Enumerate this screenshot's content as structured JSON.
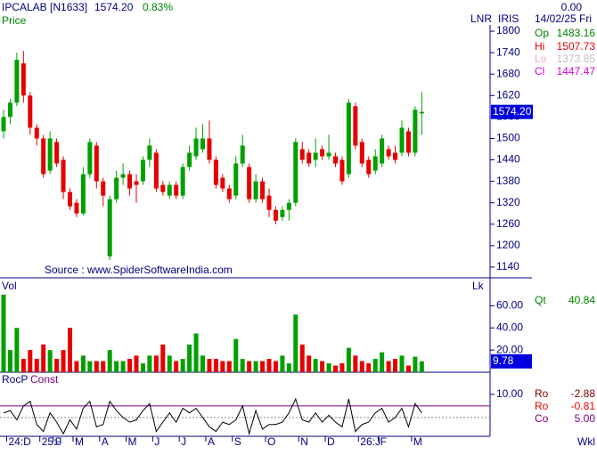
{
  "header": {
    "symbol": "IPCALAB [N1633]",
    "last": "1574.20",
    "change": "0.83%",
    "scale_mode": "LNR",
    "indicator": "IRIS",
    "right_value": "0.00",
    "date": "14/02/25 Fri",
    "ohlc": [
      [
        "Op",
        "1483.16"
      ],
      [
        "Hi",
        "1507.73"
      ],
      [
        "Lo",
        "1373.85"
      ],
      [
        "Cl",
        "1447.47"
      ]
    ],
    "source": "Source : www.SpiderSoftwareIndia.com",
    "period": "Wkl"
  },
  "chart_data": [
    {
      "type": "candlestick",
      "title": "Price",
      "categories": [
        null,
        "24:D",
        null,
        null,
        null,
        null,
        "25:J",
        null,
        "F",
        null,
        null,
        "M",
        null,
        null,
        null,
        "A",
        null,
        null,
        null,
        "M",
        null,
        null,
        null,
        "J",
        null,
        null,
        null,
        "J",
        null,
        null,
        null,
        "A",
        null,
        null,
        null,
        "S",
        null,
        null,
        null,
        null,
        "O",
        null,
        null,
        null,
        null,
        "N",
        null,
        null,
        null,
        "D",
        null,
        null,
        null,
        null,
        "26:J",
        null,
        null,
        "F",
        null,
        null,
        null,
        null,
        "M",
        null
      ],
      "open": [
        1520,
        1560,
        1600,
        1710,
        1620,
        1530,
        1500,
        1410,
        1490,
        1440,
        1350,
        1320,
        1290,
        1400,
        1480,
        1380,
        1170,
        1330,
        1390,
        1400,
        1380,
        1380,
        1440,
        1460,
        1370,
        1340,
        1370,
        1340,
        1420,
        1450,
        1470,
        1500,
        1440,
        1390,
        1360,
        1340,
        1430,
        1420,
        1330,
        1380,
        1340,
        1300,
        1280,
        1300,
        1320,
        1470,
        1460,
        1440,
        1470,
        1450,
        1450,
        1440,
        1400,
        1590,
        1490,
        1440,
        1410,
        1430,
        1470,
        1460,
        1460,
        1520,
        1460,
        1570
      ],
      "high": [
        1580,
        1610,
        1740,
        1745,
        1630,
        1540,
        1510,
        1520,
        1500,
        1450,
        1360,
        1330,
        1420,
        1500,
        1490,
        1390,
        1340,
        1410,
        1430,
        1410,
        1400,
        1450,
        1500,
        1470,
        1380,
        1380,
        1380,
        1430,
        1480,
        1530,
        1540,
        1550,
        1450,
        1400,
        1370,
        1450,
        1510,
        1430,
        1400,
        1390,
        1360,
        1310,
        1310,
        1330,
        1500,
        1490,
        1470,
        1500,
        1480,
        1510,
        1460,
        1450,
        1610,
        1600,
        1500,
        1450,
        1470,
        1510,
        1480,
        1480,
        1550,
        1530,
        1590,
        1630
      ],
      "low": [
        1500,
        1540,
        1590,
        1600,
        1510,
        1480,
        1390,
        1400,
        1420,
        1330,
        1300,
        1280,
        1285,
        1390,
        1360,
        1310,
        1160,
        1320,
        1370,
        1340,
        1320,
        1370,
        1420,
        1350,
        1340,
        1330,
        1330,
        1330,
        1410,
        1440,
        1460,
        1430,
        1360,
        1350,
        1320,
        1330,
        1420,
        1320,
        1320,
        1320,
        1280,
        1260,
        1270,
        1270,
        1310,
        1430,
        1420,
        1420,
        1440,
        1440,
        1420,
        1370,
        1390,
        1470,
        1420,
        1390,
        1400,
        1420,
        1440,
        1430,
        1450,
        1450,
        1450,
        1510
      ],
      "close": [
        1560,
        1600,
        1720,
        1620,
        1530,
        1500,
        1400,
        1500,
        1430,
        1350,
        1310,
        1290,
        1400,
        1490,
        1380,
        1340,
        1330,
        1390,
        1400,
        1360,
        1370,
        1440,
        1480,
        1360,
        1350,
        1370,
        1340,
        1420,
        1460,
        1500,
        1500,
        1440,
        1370,
        1360,
        1330,
        1430,
        1480,
        1330,
        1380,
        1330,
        1300,
        1270,
        1300,
        1320,
        1490,
        1440,
        1430,
        1460,
        1450,
        1460,
        1430,
        1380,
        1600,
        1480,
        1430,
        1400,
        1450,
        1500,
        1450,
        1440,
        1530,
        1460,
        1580,
        1574.2
      ],
      "up_color": "#00a000",
      "down_color": "#e60000",
      "ylim": [
        1110,
        1837.5
      ],
      "yticks": [
        1140,
        1200,
        1260,
        1320,
        1380,
        1440,
        1500,
        1560,
        1620,
        1680,
        1740,
        1800
      ]
    },
    {
      "type": "bar",
      "title": "Vol",
      "unit_label": "Lk",
      "values": [
        70,
        20,
        40,
        12,
        20,
        12,
        25,
        20,
        12,
        20,
        40,
        10,
        15,
        10,
        10,
        10,
        20,
        10,
        10,
        12,
        15,
        8,
        15,
        15,
        25,
        15,
        10,
        12,
        25,
        35,
        15,
        12,
        12,
        10,
        10,
        30,
        12,
        10,
        10,
        10,
        12,
        10,
        15,
        8,
        52,
        25,
        15,
        12,
        10,
        8,
        6,
        8,
        22,
        15,
        10,
        8,
        12,
        18,
        10,
        12,
        15,
        6,
        14,
        9.78
      ],
      "last_label": "9.78",
      "stat_label": "Qt",
      "stat_value": "40.84",
      "ylim": [
        0,
        82
      ],
      "yticks": [
        {
          "value": 20,
          "label": "20.00"
        },
        {
          "value": 40,
          "label": "40.00"
        },
        {
          "value": 60,
          "label": "60.00"
        }
      ]
    },
    {
      "type": "line",
      "title": "RocP",
      "subtitle": "Const",
      "color": "#000000",
      "const": 5,
      "const_color": "#800080",
      "values": [
        2,
        3,
        -1,
        5,
        7,
        -3,
        -6,
        2,
        -2,
        -7,
        -1,
        -5,
        4,
        7,
        -4,
        -3,
        7,
        3,
        0,
        -2,
        -1,
        3,
        6,
        -6,
        -2,
        2,
        -2,
        4,
        2,
        4,
        0,
        -4,
        -6,
        -2,
        -3,
        -1,
        5,
        -7,
        3,
        -5,
        -3,
        -3,
        -2,
        2,
        8,
        -1,
        -2,
        2,
        -2,
        1,
        -2,
        -4,
        8,
        -6,
        -3,
        -2,
        2,
        4,
        -2,
        0,
        4,
        -4,
        6,
        2
      ],
      "ylim": [
        -8.1,
        18.8
      ],
      "yticks": [
        {
          "value": 10,
          "label": "10.00"
        }
      ],
      "legend": [
        [
          "Ro",
          "-2.88"
        ],
        [
          "Ro",
          "-0.81"
        ],
        [
          "Co",
          "5.00"
        ]
      ]
    }
  ]
}
